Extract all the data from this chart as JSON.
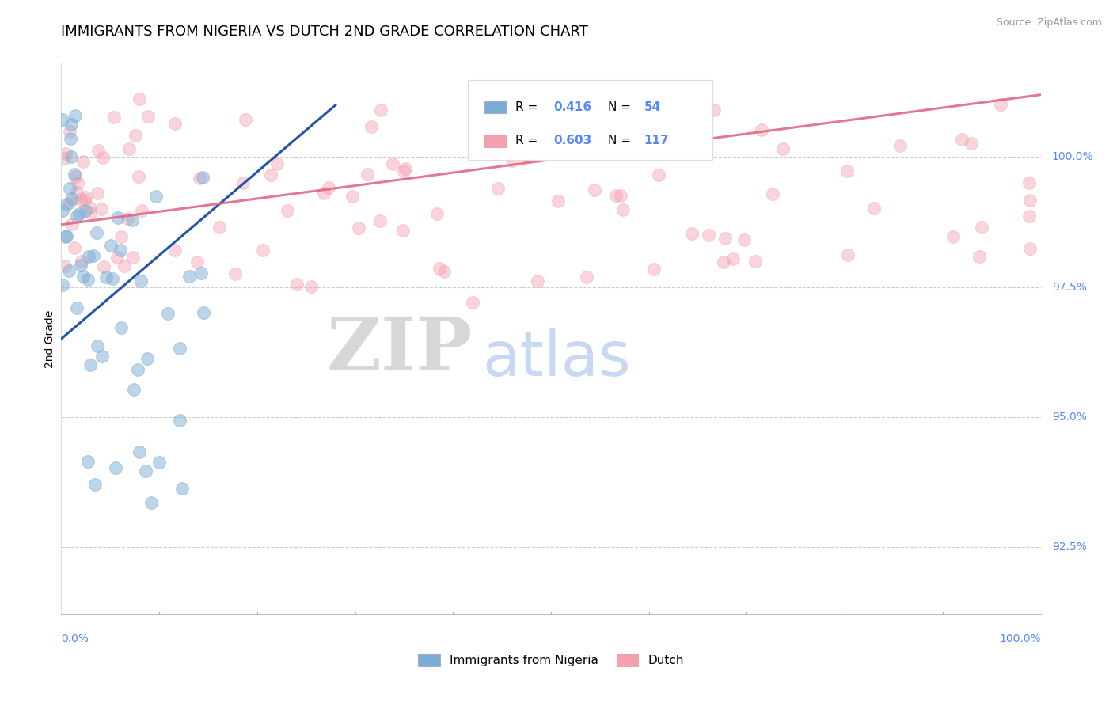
{
  "title": "IMMIGRANTS FROM NIGERIA VS DUTCH 2ND GRADE CORRELATION CHART",
  "source_text": "Source: ZipAtlas.com",
  "ylabel": "2nd Grade",
  "legend_label_blue": "Immigrants from Nigeria",
  "legend_label_pink": "Dutch",
  "r_blue": 0.416,
  "n_blue": 54,
  "r_pink": 0.603,
  "n_pink": 117,
  "color_blue": "#7aadd4",
  "color_pink": "#f4a0b0",
  "line_color_blue": "#2255aa",
  "line_color_pink": "#e06080",
  "y_ticks": [
    92.5,
    95.0,
    97.5,
    100.0
  ],
  "x_range": [
    0.0,
    1.0
  ],
  "y_range": [
    91.2,
    101.8
  ],
  "watermark_zip": "ZIP",
  "watermark_atlas": "atlas",
  "background_color": "#ffffff",
  "grid_color": "#cccccc",
  "title_fontsize": 13,
  "axis_label_fontsize": 10,
  "tick_fontsize": 10,
  "tick_color": "#5588ff"
}
